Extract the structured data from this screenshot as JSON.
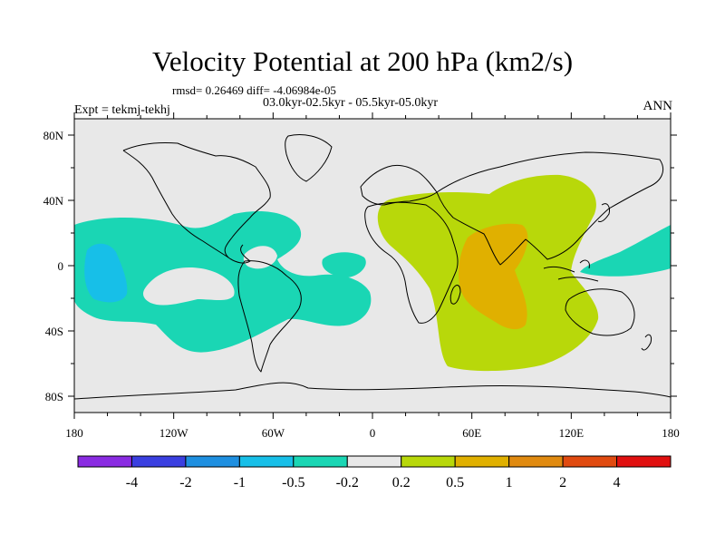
{
  "title": "Velocity Potential at 200 hPa (km2/s)",
  "stats_text": "rmsd= 0.26469 diff= -4.06984e-05",
  "period_text": "03.0kyr-02.5kyr - 05.5kyr-05.0kyr",
  "experiment_text": "Expt = tekmj-tekhj",
  "season": "ANN",
  "map": {
    "lon_ticks": [
      "180",
      "120W",
      "60W",
      "0",
      "60E",
      "120E",
      "180"
    ],
    "lat_ticks": [
      "80N",
      "40N",
      "0",
      "40S",
      "80S"
    ]
  },
  "colorbar": {
    "labels": [
      "-4",
      "-2",
      "-1",
      "-0.5",
      "-0.2",
      "0.2",
      "0.5",
      "1",
      "2",
      "4"
    ],
    "colors": [
      "#8a2be2",
      "#3a3fe0",
      "#1e8fe0",
      "#17bfe8",
      "#1ad6b4",
      "#e8e8e8",
      "#b8d80a",
      "#e0b000",
      "#e08a10",
      "#e04a10",
      "#e01010"
    ]
  },
  "palette": {
    "background_zero": "#e8e8e8",
    "neg_light": "#1ad6b4",
    "neg_mid": "#17bfe8",
    "pos_light": "#b8d80a",
    "pos_mid": "#e0b000",
    "land_outline": "#000000"
  }
}
